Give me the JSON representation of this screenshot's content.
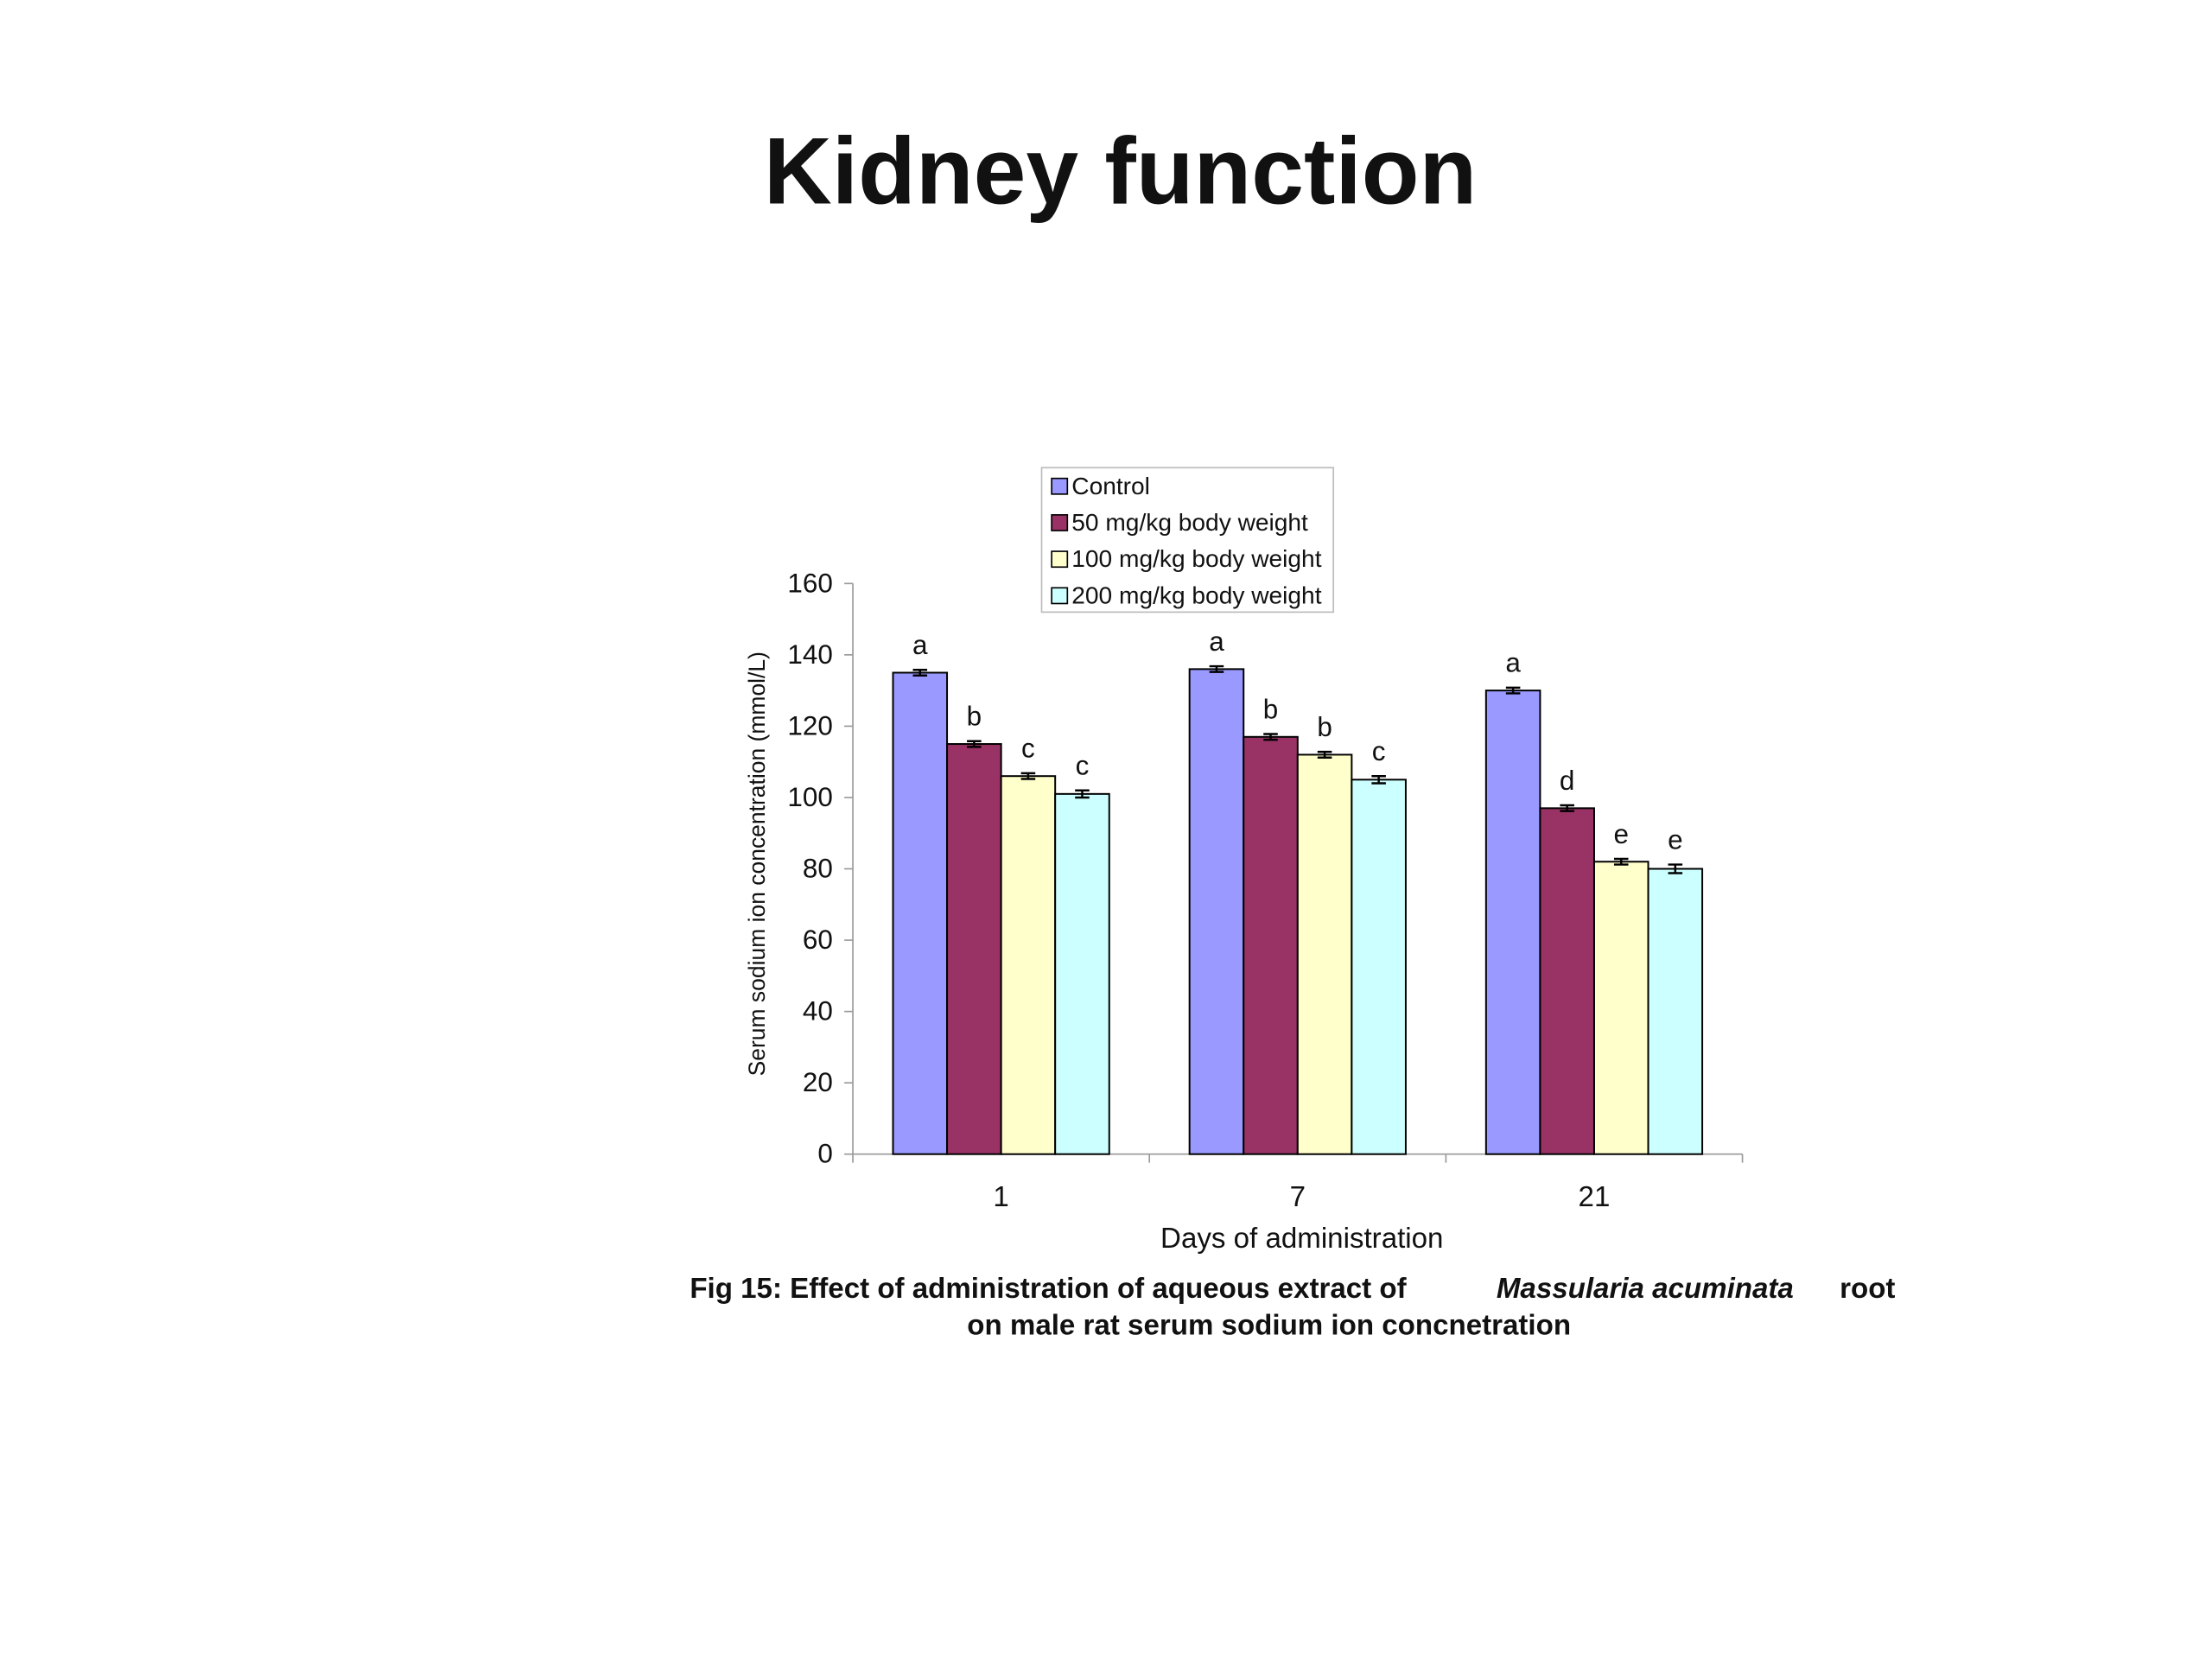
{
  "title": "Kidney function",
  "chart_data": {
    "type": "bar",
    "categories": [
      "1",
      "7",
      "21"
    ],
    "series": [
      {
        "name": "Control",
        "color": "#9999ff",
        "values": [
          135,
          136,
          130
        ],
        "errors": [
          0.8,
          0.8,
          0.8
        ],
        "annotations": [
          "a",
          "a",
          "a"
        ]
      },
      {
        "name": "50 mg/kg body weight",
        "color": "#993366",
        "values": [
          115,
          117,
          97
        ],
        "errors": [
          0.8,
          0.8,
          0.8
        ],
        "annotations": [
          "b",
          "b",
          "d"
        ]
      },
      {
        "name": "100 mg/kg body weight",
        "color": "#ffffcc",
        "values": [
          106,
          112,
          82
        ],
        "errors": [
          0.8,
          0.8,
          0.8
        ],
        "annotations": [
          "c",
          "b",
          "e"
        ]
      },
      {
        "name": "200 mg/kg body weight",
        "color": "#ccffff",
        "values": [
          101,
          105,
          80
        ],
        "errors": [
          1,
          1,
          1.2
        ],
        "annotations": [
          "c",
          "c",
          "e"
        ]
      }
    ],
    "ylim": [
      0,
      160
    ],
    "yticks": [
      0,
      20,
      40,
      60,
      80,
      100,
      120,
      140,
      160
    ],
    "ylabel": "Serum sodium ion concentration (mmol/L)",
    "xlabel": "Days of administration",
    "legend": "top",
    "caption": {
      "line1": "Fig 15: Effect of administration of aqueous extract of",
      "species": "Massularia acuminata",
      "line1_end": "root",
      "line2": "on male rat serum sodium ion concnetration"
    }
  }
}
